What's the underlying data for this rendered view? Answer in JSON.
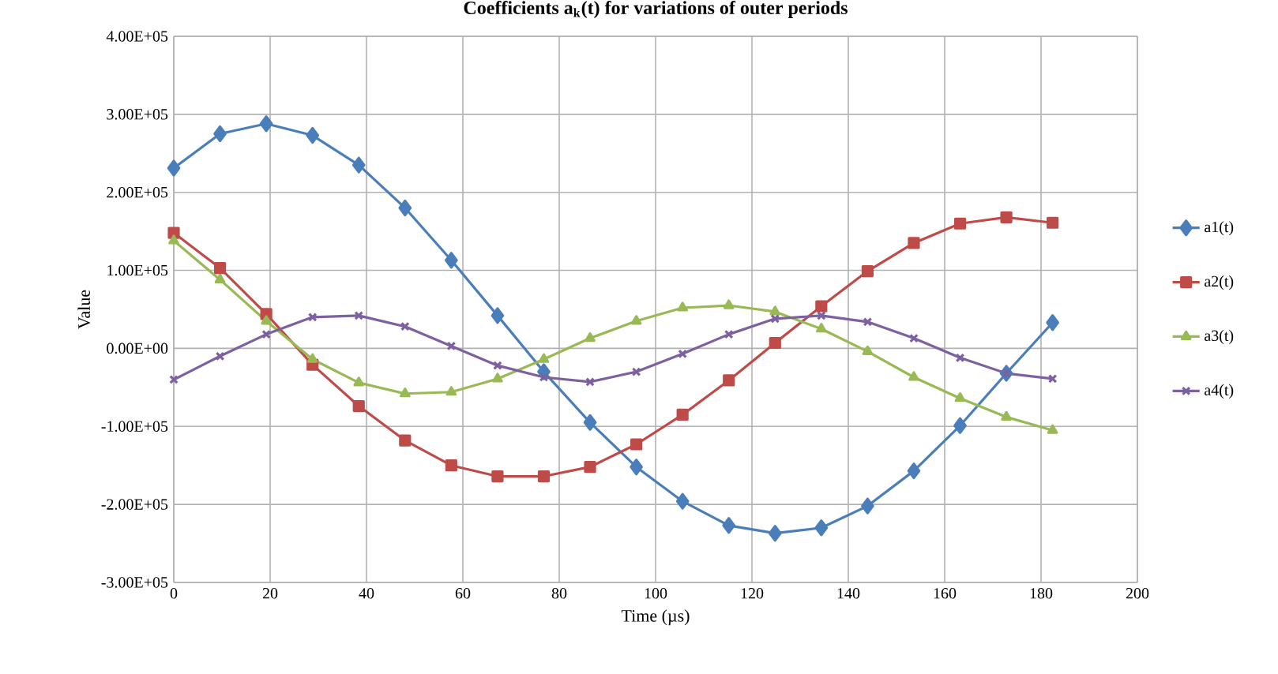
{
  "chart_data": {
    "type": "line",
    "title": "Coefficients a$_{k}$(t) for variations of outer periods",
    "xlabel": "Time (µs)",
    "ylabel": "Value",
    "x": [
      0,
      9.6,
      19.2,
      28.8,
      38.4,
      48,
      57.6,
      67.2,
      76.8,
      86.4,
      96,
      105.6,
      115.2,
      124.8,
      134.4,
      144,
      153.6,
      163.2,
      172.8,
      182.4
    ],
    "series": [
      {
        "name": "a1(t)",
        "color": "#4a7ebb",
        "marker": "diamond",
        "values": [
          231000,
          275000,
          288000,
          273000,
          235000,
          180000,
          113000,
          42000,
          -30000,
          -95000,
          -152000,
          -196000,
          -227000,
          -237000,
          -230000,
          -202000,
          -157000,
          -99000,
          -32000,
          33000
        ]
      },
      {
        "name": "a2(t)",
        "color": "#be4b48",
        "marker": "square",
        "values": [
          148000,
          103000,
          44000,
          -21000,
          -74000,
          -118000,
          -150000,
          -164000,
          -164000,
          -152000,
          -123000,
          -85000,
          -41000,
          7000,
          54000,
          99000,
          135000,
          160000,
          168000,
          161000
        ]
      },
      {
        "name": "a3(t)",
        "color": "#98b954",
        "marker": "triangle",
        "values": [
          138000,
          88000,
          35000,
          -14000,
          -44000,
          -58000,
          -56000,
          -39000,
          -14000,
          13000,
          35000,
          52000,
          55000,
          47000,
          25000,
          -4000,
          -37000,
          -64000,
          -88000,
          -105000
        ]
      },
      {
        "name": "a4(t)",
        "color": "#7d60a0",
        "marker": "cross",
        "values": [
          -40000,
          -10000,
          18000,
          40000,
          42000,
          28000,
          3000,
          -22000,
          -37000,
          -43000,
          -30000,
          -7000,
          18000,
          38000,
          42000,
          34000,
          13000,
          -12000,
          -32000,
          -39000
        ]
      }
    ],
    "xlim": [
      0,
      200
    ],
    "xticks": [
      0,
      20,
      40,
      60,
      80,
      100,
      120,
      140,
      160,
      180,
      200
    ],
    "ylim": [
      -300000,
      400000
    ],
    "yticks": [
      {
        "value": -300000,
        "label": "-3.00E+05"
      },
      {
        "value": -200000,
        "label": "-2.00E+05"
      },
      {
        "value": -100000,
        "label": "-1.00E+05"
      },
      {
        "value": 0,
        "label": "0.00E+00"
      },
      {
        "value": 100000,
        "label": "1.00E+05"
      },
      {
        "value": 200000,
        "label": "2.00E+05"
      },
      {
        "value": 300000,
        "label": "3.00E+05"
      },
      {
        "value": 400000,
        "label": "4.00E+05"
      }
    ],
    "grid": true,
    "legend": "right",
    "line_style": "solid"
  }
}
